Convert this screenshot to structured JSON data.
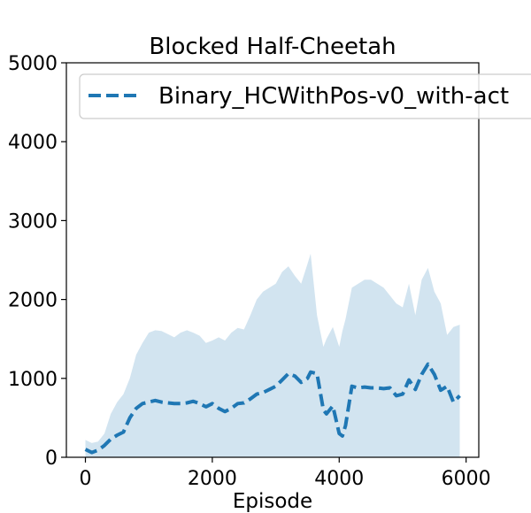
{
  "chart_data": {
    "type": "line",
    "title": "Blocked Half-Cheetah",
    "xlabel": "Episode",
    "ylabel": "",
    "xlim": [
      -300,
      6200
    ],
    "ylim": [
      0,
      5000
    ],
    "xticks": [
      "0",
      "2000",
      "4000",
      "6000"
    ],
    "yticks": [
      "0",
      "1000",
      "2000",
      "3000",
      "4000",
      "5000"
    ],
    "legend": "top-right",
    "grid": false,
    "series": [
      {
        "name": "Binary_HCWithPos-v0_with-act",
        "color": "#1f77b4",
        "style": "dashed",
        "x": [
          0,
          100,
          200,
          300,
          400,
          500,
          600,
          700,
          800,
          900,
          1000,
          1100,
          1200,
          1300,
          1400,
          1500,
          1600,
          1700,
          1800,
          1900,
          2000,
          2100,
          2200,
          2300,
          2400,
          2500,
          2600,
          2700,
          2800,
          2900,
          3000,
          3100,
          3200,
          3300,
          3400,
          3500,
          3550,
          3650,
          3750,
          3800,
          3900,
          4000,
          4050,
          4100,
          4200,
          4300,
          4400,
          4500,
          4600,
          4700,
          4800,
          4900,
          5000,
          5100,
          5200,
          5300,
          5400,
          5500,
          5600,
          5700,
          5800,
          5900
        ],
        "y": [
          100,
          60,
          90,
          150,
          230,
          280,
          320,
          500,
          620,
          680,
          700,
          720,
          700,
          690,
          680,
          680,
          690,
          710,
          680,
          640,
          680,
          620,
          580,
          620,
          680,
          690,
          740,
          800,
          820,
          860,
          900,
          980,
          1060,
          1030,
          950,
          1000,
          1080,
          1060,
          600,
          550,
          650,
          300,
          270,
          400,
          900,
          880,
          890,
          880,
          880,
          870,
          880,
          780,
          800,
          980,
          860,
          1050,
          1180,
          1050,
          850,
          900,
          700,
          780
        ],
        "band_upper": [
          220,
          180,
          200,
          300,
          550,
          700,
          800,
          1000,
          1300,
          1450,
          1580,
          1610,
          1600,
          1560,
          1520,
          1580,
          1610,
          1580,
          1540,
          1450,
          1480,
          1520,
          1480,
          1580,
          1640,
          1620,
          1800,
          2000,
          2100,
          2150,
          2200,
          2350,
          2420,
          2300,
          2200,
          2450,
          2580,
          1800,
          1400,
          1500,
          1650,
          1400,
          1600,
          1750,
          2150,
          2200,
          2250,
          2250,
          2200,
          2150,
          2050,
          1950,
          1900,
          2200,
          1800,
          2250,
          2400,
          2100,
          1950,
          1550,
          1650,
          1680
        ],
        "band_lower": [
          0,
          0,
          0,
          0,
          0,
          0,
          0,
          0,
          0,
          0,
          0,
          0,
          0,
          0,
          0,
          0,
          0,
          0,
          0,
          0,
          0,
          0,
          0,
          0,
          0,
          0,
          0,
          0,
          0,
          0,
          0,
          0,
          0,
          0,
          0,
          0,
          0,
          0,
          0,
          0,
          0,
          0,
          0,
          0,
          0,
          0,
          0,
          0,
          0,
          0,
          0,
          0,
          0,
          0,
          0,
          0,
          0,
          0,
          0,
          0,
          0,
          0
        ]
      }
    ]
  }
}
